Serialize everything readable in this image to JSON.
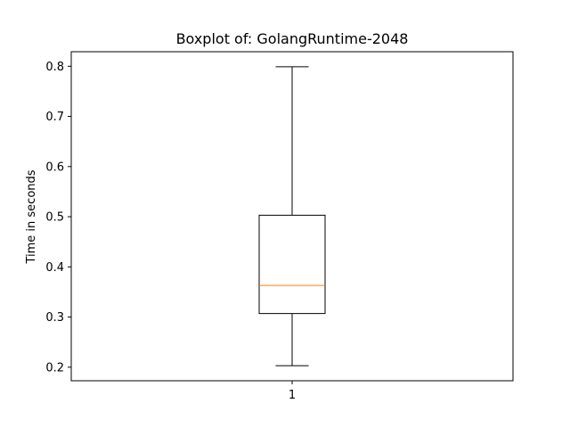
{
  "chart_data": {
    "type": "boxplot",
    "title": "Boxplot of: GolangRuntime-2048",
    "xlabel": "",
    "ylabel": "Time in seconds",
    "categories": [
      "1"
    ],
    "boxes": [
      {
        "category": "1",
        "whisker_low": 0.203,
        "q1": 0.307,
        "median": 0.363,
        "q3": 0.503,
        "whisker_high": 0.799
      }
    ],
    "yticks": [
      0.2,
      0.3,
      0.4,
      0.5,
      0.6,
      0.7,
      0.8
    ],
    "ytick_labels": [
      "0.2",
      "0.3",
      "0.4",
      "0.5",
      "0.6",
      "0.7",
      "0.8"
    ],
    "ylim": [
      0.173,
      0.829
    ],
    "grid": false,
    "colors": {
      "box": "#000000",
      "median": "#ff7f0e",
      "whisker": "#000000"
    }
  }
}
